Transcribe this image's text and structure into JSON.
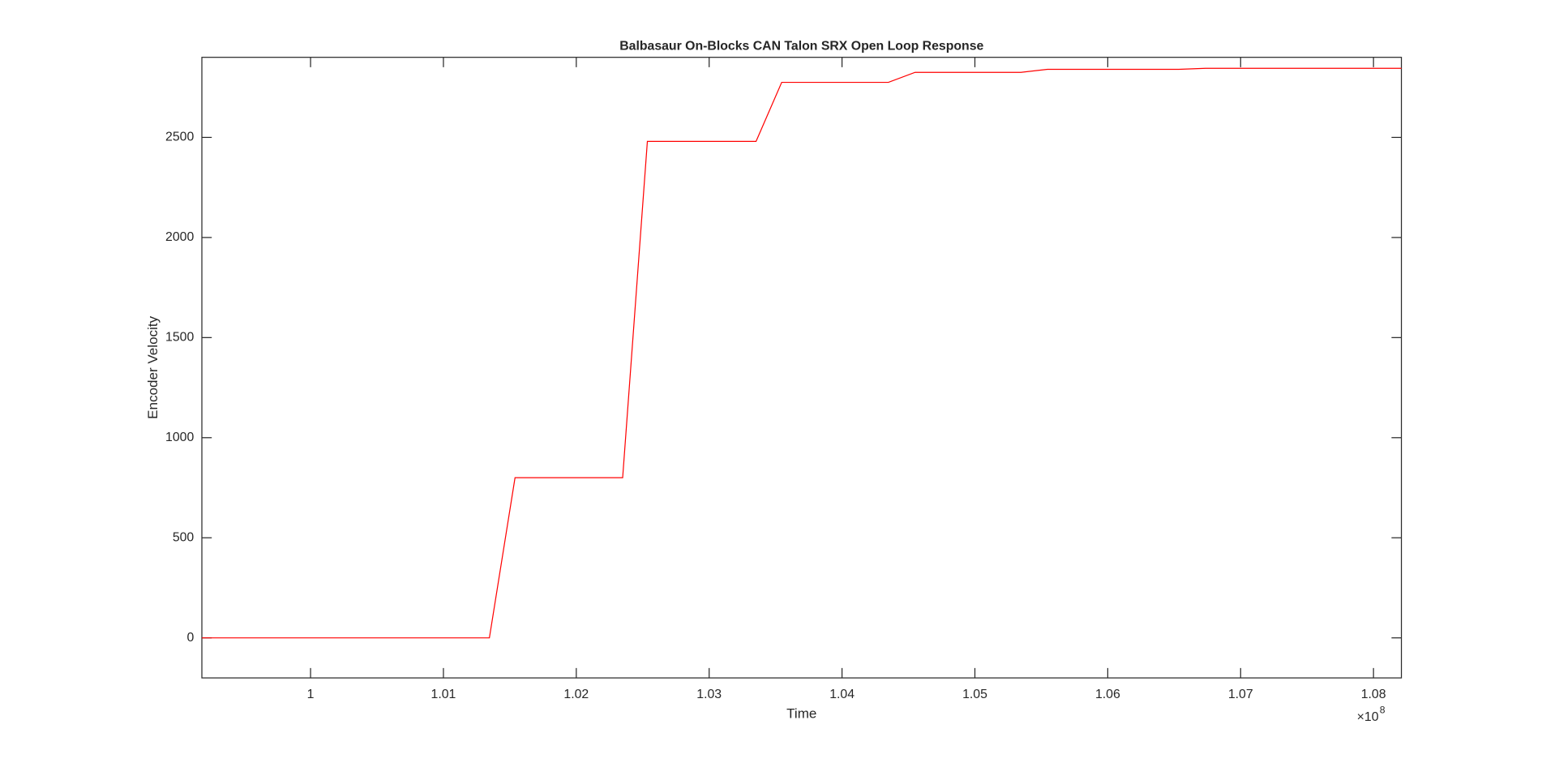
{
  "chart_data": {
    "type": "line",
    "title": "Balbasaur On-Blocks CAN Talon SRX Open Loop Response",
    "x_label": "Time",
    "y_label": "Encoder Velocity",
    "x_multiplier": {
      "base": "×10",
      "exponent": "8"
    },
    "x": [
      0.99182,
      1.01346,
      1.01539,
      1.02349,
      1.02535,
      1.03353,
      1.03546,
      1.04349,
      1.0455,
      1.05346,
      1.05546,
      1.06535,
      1.06736,
      1.0821
    ],
    "series": [
      {
        "name": "Encoder Velocity",
        "color": "#ff0000",
        "values": [
          0,
          0,
          800,
          800,
          2480,
          2480,
          2775,
          2775,
          2825,
          2825,
          2840,
          2840,
          2845,
          2845
        ]
      }
    ],
    "xlim": [
      0.99182,
      1.0821
    ],
    "xticks": [
      1,
      1.01,
      1.02,
      1.03,
      1.04,
      1.05,
      1.06,
      1.07,
      1.08
    ],
    "ylim": [
      -200,
      2900
    ],
    "yticks": [
      0,
      500,
      1000,
      1500,
      2000,
      2500
    ]
  }
}
